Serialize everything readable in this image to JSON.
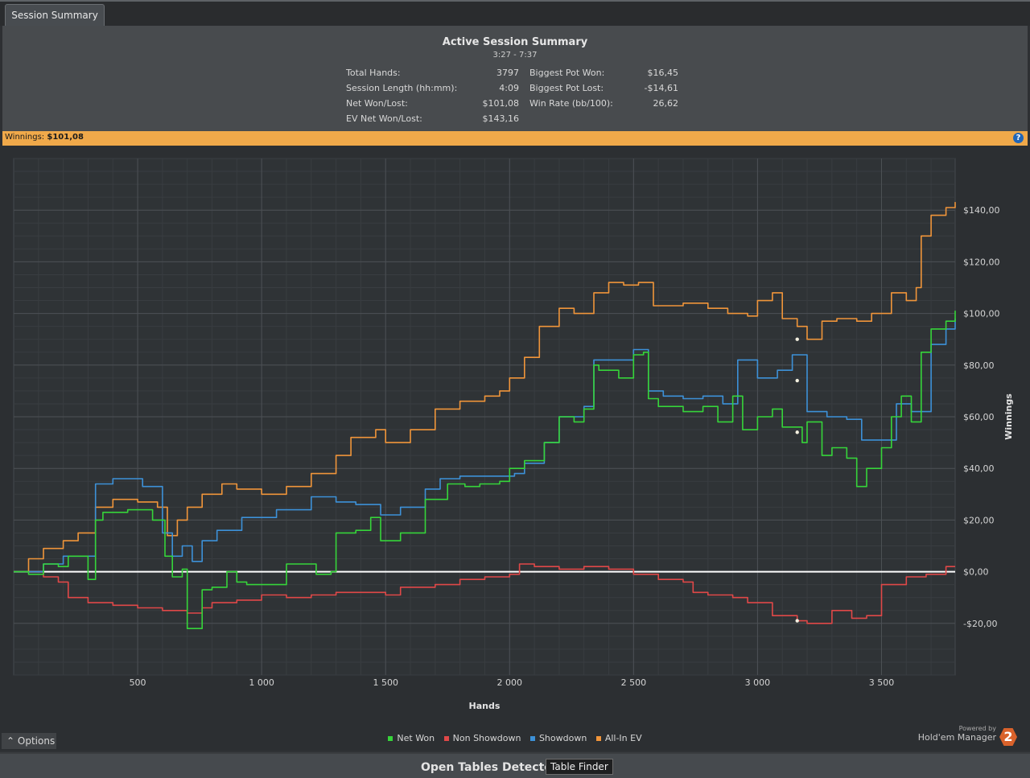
{
  "tab": {
    "label": "Session Summary"
  },
  "summary": {
    "title": "Active Session Summary",
    "time_range": "3:27 - 7:37",
    "stats_left": [
      {
        "label": "Total Hands:",
        "value": "3797"
      },
      {
        "label": "Session Length (hh:mm):",
        "value": "4:09"
      },
      {
        "label": "Net Won/Lost:",
        "value": "$101,08"
      },
      {
        "label": "EV Net Won/Lost:",
        "value": "$143,16"
      }
    ],
    "stats_right": [
      {
        "label": "Biggest Pot Won:",
        "value": "$16,45"
      },
      {
        "label": "Biggest Pot Lost:",
        "value": "-$14,61"
      },
      {
        "label": "Win Rate (bb/100):",
        "value": "26,62"
      }
    ]
  },
  "winnings_bar": {
    "label": "Winnings:",
    "value": "$101,08",
    "help_icon": "question-circle-icon"
  },
  "chart_data": {
    "type": "line",
    "xlabel": "Hands",
    "ylabel": "Winnings",
    "xlim": [
      0,
      3797
    ],
    "ylim": [
      -40,
      160
    ],
    "x_ticks": [
      500,
      1000,
      1500,
      2000,
      2500,
      3000,
      3500
    ],
    "x_tick_labels": [
      "500",
      "1 000",
      "1 500",
      "2 000",
      "2 500",
      "3 000",
      "3 500"
    ],
    "y_ticks": [
      -20,
      0,
      20,
      40,
      60,
      80,
      100,
      120,
      140
    ],
    "y_tick_labels": [
      "-$20,00",
      "$0,00",
      "$20,00",
      "$40,00",
      "$60,00",
      "$80,00",
      "$100,00",
      "$120,00",
      "$140,00"
    ],
    "grid": true,
    "legend": "bottom",
    "series": [
      {
        "name": "Net Won",
        "color": "#36d43a",
        "x": [
          0,
          60,
          120,
          180,
          220,
          300,
          330,
          360,
          460,
          560,
          610,
          640,
          680,
          700,
          760,
          800,
          860,
          900,
          940,
          1100,
          1220,
          1280,
          1300,
          1380,
          1440,
          1480,
          1560,
          1660,
          1750,
          1820,
          1880,
          1960,
          2000,
          2060,
          2140,
          2200,
          2260,
          2300,
          2340,
          2360,
          2440,
          2500,
          2540,
          2560,
          2600,
          2700,
          2780,
          2840,
          2900,
          2940,
          3000,
          3060,
          3100,
          3180,
          3200,
          3260,
          3300,
          3360,
          3400,
          3440,
          3500,
          3540,
          3580,
          3620,
          3660,
          3700,
          3760,
          3797
        ],
        "y": [
          0,
          -1,
          3,
          2,
          6,
          -3,
          20,
          23,
          24,
          20,
          6,
          -2,
          1,
          -22,
          -7,
          -6,
          0,
          -4,
          -5,
          3,
          -1,
          0,
          15,
          16,
          21,
          12,
          15,
          28,
          34,
          33,
          34,
          35,
          40,
          43,
          50,
          60,
          58,
          63,
          80,
          78,
          75,
          84,
          85,
          67,
          64,
          62,
          64,
          58,
          68,
          55,
          60,
          63,
          56,
          50,
          58,
          45,
          48,
          44,
          33,
          40,
          48,
          60,
          68,
          58,
          85,
          94,
          97,
          101.08
        ]
      },
      {
        "name": "Non Showdown",
        "color": "#e04848",
        "x": [
          0,
          120,
          180,
          220,
          300,
          400,
          500,
          600,
          700,
          760,
          800,
          900,
          1000,
          1100,
          1200,
          1300,
          1400,
          1500,
          1560,
          1700,
          1800,
          1900,
          2000,
          2040,
          2100,
          2200,
          2300,
          2400,
          2500,
          2600,
          2700,
          2740,
          2800,
          2900,
          2960,
          3060,
          3160,
          3200,
          3300,
          3380,
          3440,
          3500,
          3600,
          3680,
          3760,
          3797
        ],
        "y": [
          0,
          -2,
          -4,
          -10,
          -12,
          -13,
          -14,
          -15,
          -16,
          -14,
          -12,
          -11,
          -9,
          -10,
          -9,
          -8,
          -8,
          -9,
          -6,
          -5,
          -3,
          -2,
          -1,
          3,
          2,
          1,
          2,
          1,
          -1,
          -3,
          -4,
          -8,
          -9,
          -10,
          -12,
          -17,
          -19,
          -20,
          -15,
          -18,
          -17,
          -5,
          -2,
          -1,
          2,
          2
        ]
      },
      {
        "name": "Showdown",
        "color": "#3d91d8",
        "x": [
          0,
          120,
          200,
          330,
          400,
          520,
          600,
          640,
          680,
          720,
          760,
          820,
          920,
          1060,
          1200,
          1300,
          1380,
          1480,
          1560,
          1660,
          1720,
          1800,
          1900,
          2020,
          2060,
          2140,
          2200,
          2260,
          2300,
          2340,
          2400,
          2500,
          2560,
          2620,
          2700,
          2780,
          2860,
          2920,
          3000,
          3080,
          3140,
          3200,
          3280,
          3360,
          3420,
          3500,
          3560,
          3620,
          3700,
          3760,
          3797
        ],
        "y": [
          0,
          3,
          6,
          34,
          36,
          33,
          15,
          6,
          10,
          4,
          12,
          16,
          21,
          24,
          29,
          27,
          26,
          22,
          25,
          32,
          36,
          37,
          37,
          38,
          42,
          50,
          60,
          60,
          64,
          82,
          82,
          86,
          70,
          68,
          67,
          68,
          65,
          82,
          75,
          78,
          84,
          62,
          60,
          59,
          51,
          51,
          65,
          62,
          88,
          94,
          98
        ]
      },
      {
        "name": "All-In EV",
        "color": "#f0953a",
        "x": [
          0,
          60,
          120,
          200,
          260,
          330,
          400,
          500,
          580,
          620,
          660,
          700,
          760,
          840,
          900,
          1000,
          1100,
          1200,
          1300,
          1360,
          1460,
          1500,
          1600,
          1700,
          1800,
          1900,
          1960,
          2000,
          2060,
          2120,
          2200,
          2260,
          2340,
          2400,
          2460,
          2520,
          2580,
          2700,
          2800,
          2880,
          2960,
          3000,
          3060,
          3100,
          3160,
          3200,
          3260,
          3320,
          3400,
          3460,
          3540,
          3600,
          3640,
          3660,
          3700,
          3760,
          3797
        ],
        "y": [
          0,
          5,
          9,
          12,
          15,
          25,
          28,
          27,
          25,
          14,
          20,
          25,
          30,
          34,
          32,
          30,
          33,
          38,
          45,
          52,
          55,
          50,
          55,
          63,
          66,
          68,
          70,
          75,
          83,
          95,
          102,
          100,
          108,
          112,
          111,
          112,
          103,
          104,
          102,
          100,
          99,
          105,
          108,
          98,
          95,
          90,
          97,
          98,
          97,
          100,
          108,
          105,
          110,
          130,
          138,
          141,
          143.16
        ]
      }
    ],
    "markers": [
      {
        "series": "All-In EV",
        "x": 3160,
        "y": 90
      },
      {
        "series": "Showdown",
        "x": 3160,
        "y": 74
      },
      {
        "series": "Net Won",
        "x": 3160,
        "y": 54
      },
      {
        "series": "Non Showdown",
        "x": 3160,
        "y": -19
      }
    ]
  },
  "options": {
    "label": "Options"
  },
  "branding": {
    "powered": "Powered by",
    "name": "Hold'em Manager",
    "logo_text": "2"
  },
  "bottom": {
    "title": "Open Tables Detected",
    "button": "Table Finder"
  }
}
